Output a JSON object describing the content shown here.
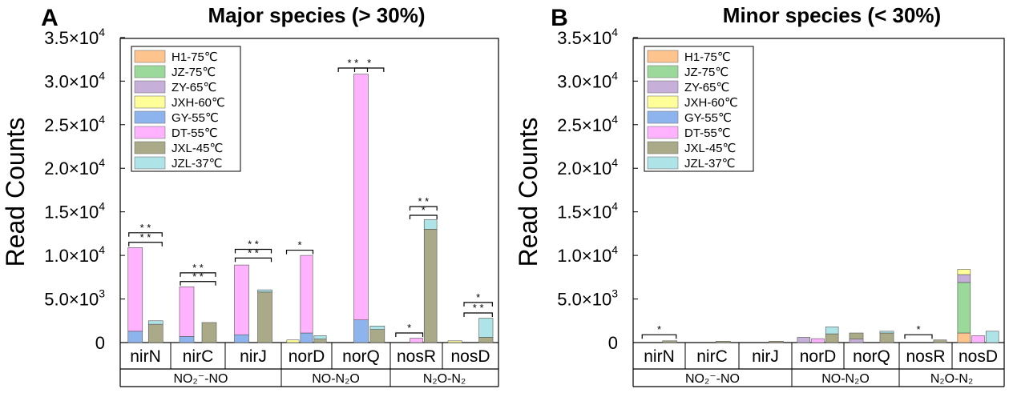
{
  "chart_data": [
    {
      "type": "bar",
      "panel_label": "A",
      "title": "Major species (> 30%)",
      "ylabel": "Read Counts",
      "ylim": [
        0,
        36000
      ],
      "yticks": [
        {
          "label": "0",
          "mant": "0",
          "exp": ""
        },
        {
          "label": "5.0×10³",
          "mant": "5.0×10",
          "exp": "3"
        },
        {
          "label": "1.0×10⁴",
          "mant": "1.0×10",
          "exp": "4"
        },
        {
          "label": "1.5×10⁴",
          "mant": "1.5×10",
          "exp": "4"
        },
        {
          "label": "2.0×10⁴",
          "mant": "2.0×10",
          "exp": "4"
        },
        {
          "label": "2.5×10⁴",
          "mant": "2.5×10",
          "exp": "4"
        },
        {
          "label": "3.0×10⁴",
          "mant": "3.0×10",
          "exp": "4"
        },
        {
          "label": "3.5×10⁴",
          "mant": "3.5×10",
          "exp": "4"
        }
      ],
      "ytick_values": [
        0,
        5000,
        10000,
        15000,
        20000,
        25000,
        30000,
        35000
      ],
      "legend_position": "top-left",
      "series_names": [
        "H1-75℃",
        "JZ-75℃",
        "ZY-65℃",
        "JXH-60℃",
        "GY-55℃",
        "DT-55℃",
        "JXL-45℃",
        "JZL-37℃"
      ],
      "colors": [
        "#FDC48E",
        "#9BD99B",
        "#C6B0DA",
        "#FFFF99",
        "#8EB4EE",
        "#FFB3FF",
        "#AAAA88",
        "#AEE3E8"
      ],
      "genes": [
        {
          "name": "nirN",
          "stacks": [
            {
              "a": [
                0,
                0,
                0,
                0,
                1300,
                9600,
                0,
                0
              ]
            },
            {
              "a": [
                0,
                0,
                0,
                0,
                0,
                0,
                2100,
                400
              ]
            }
          ]
        },
        {
          "name": "nirC",
          "stacks": [
            {
              "a": [
                0,
                0,
                0,
                0,
                700,
                5700,
                0,
                0
              ]
            },
            {
              "a": [
                0,
                0,
                0,
                0,
                0,
                0,
                2300,
                0
              ]
            }
          ]
        },
        {
          "name": "nirJ",
          "stacks": [
            {
              "a": [
                0,
                0,
                0,
                0,
                900,
                8000,
                0,
                0
              ]
            },
            {
              "a": [
                0,
                0,
                0,
                0,
                0,
                0,
                5800,
                250
              ]
            }
          ]
        },
        {
          "name": "norD",
          "stacks": [
            {
              "a": [
                0,
                0,
                0,
                300,
                0,
                0,
                0,
                0
              ]
            },
            {
              "a": [
                0,
                0,
                0,
                0,
                1100,
                8900,
                0,
                0
              ]
            },
            {
              "a": [
                0,
                0,
                0,
                0,
                0,
                0,
                400,
                400
              ]
            }
          ]
        },
        {
          "name": "norQ",
          "stacks": [
            {
              "a": [
                0,
                0,
                0,
                0,
                0,
                0,
                0,
                0
              ]
            },
            {
              "a": [
                0,
                0,
                0,
                0,
                2600,
                28200,
                0,
                0
              ]
            },
            {
              "a": [
                0,
                0,
                0,
                0,
                0,
                0,
                1500,
                400
              ]
            }
          ]
        },
        {
          "name": "nosR",
          "stacks": [
            {
              "a": [
                0,
                0,
                0,
                0,
                0,
                0,
                0,
                0
              ]
            },
            {
              "a": [
                0,
                0,
                0,
                0,
                0,
                500,
                0,
                0
              ]
            },
            {
              "a": [
                0,
                0,
                0,
                0,
                0,
                0,
                13000,
                1100
              ]
            }
          ]
        },
        {
          "name": "nosD",
          "stacks": [
            {
              "a": [
                0,
                0,
                0,
                200,
                0,
                0,
                0,
                0
              ]
            },
            {
              "a": [
                0,
                0,
                0,
                0,
                0,
                0,
                0,
                0
              ]
            },
            {
              "a": [
                0,
                0,
                0,
                0,
                0,
                0,
                600,
                2200
              ]
            }
          ]
        }
      ],
      "groups": [
        {
          "label": "NO₂⁻-NO",
          "genes": [
            0,
            2
          ]
        },
        {
          "label": "NO-N₂O",
          "genes": [
            3,
            4
          ]
        },
        {
          "label": "N₂O-N₂",
          "genes": [
            5,
            6
          ]
        }
      ],
      "significance": [
        {
          "gene": 0,
          "from": 0,
          "to": 1,
          "label": "* *",
          "y": 11500
        },
        {
          "gene": 0,
          "from": 0,
          "to": 1,
          "label": "* *",
          "y": 12600
        },
        {
          "gene": 1,
          "from": 0,
          "to": 1,
          "label": "* *",
          "y": 7000
        },
        {
          "gene": 1,
          "from": 0,
          "to": 1,
          "label": "* *",
          "y": 8000
        },
        {
          "gene": 2,
          "from": 0,
          "to": 1,
          "label": "* *",
          "y": 9700
        },
        {
          "gene": 2,
          "from": 0,
          "to": 1,
          "label": "* *",
          "y": 10700
        },
        {
          "gene": 3,
          "from": 0,
          "to": 1,
          "label": "*",
          "y": 10600
        },
        {
          "gene": 4,
          "from": 0,
          "to": 1,
          "label": "* *",
          "y": 31500
        },
        {
          "gene": 4,
          "from": 1,
          "to": 2,
          "label": "*",
          "y": 31500
        },
        {
          "gene": 5,
          "from": 0,
          "to": 1,
          "label": "*",
          "y": 1100
        },
        {
          "gene": 5,
          "from": 1,
          "to": 2,
          "label": "* *",
          "y": 15600
        },
        {
          "gene": 5,
          "from": 1,
          "to": 2,
          "label": "*",
          "y": 14600
        },
        {
          "gene": 6,
          "from": 1,
          "to": 2,
          "label": "*",
          "y": 4600
        },
        {
          "gene": 6,
          "from": 1,
          "to": 2,
          "label": "* *",
          "y": 3400
        }
      ]
    },
    {
      "type": "bar",
      "panel_label": "B",
      "title": "Minor species (< 30%)",
      "ylabel": "Read Counts",
      "ylim": [
        0,
        36000
      ],
      "yticks": [
        {
          "label": "0",
          "mant": "0",
          "exp": ""
        },
        {
          "label": "5.0×10³",
          "mant": "5.0×10",
          "exp": "3"
        },
        {
          "label": "1.0×10⁴",
          "mant": "1.0×10",
          "exp": "4"
        },
        {
          "label": "1.5×10⁴",
          "mant": "1.5×10",
          "exp": "4"
        },
        {
          "label": "2.0×10⁴",
          "mant": "2.0×10",
          "exp": "4"
        },
        {
          "label": "2.5×10⁴",
          "mant": "2.5×10",
          "exp": "4"
        },
        {
          "label": "3.0×10⁴",
          "mant": "3.0×10",
          "exp": "4"
        },
        {
          "label": "3.5×10⁴",
          "mant": "3.5×10",
          "exp": "4"
        }
      ],
      "ytick_values": [
        0,
        5000,
        10000,
        15000,
        20000,
        25000,
        30000,
        35000
      ],
      "legend_position": "top-left",
      "series_names": [
        "H1-75℃",
        "JZ-75℃",
        "ZY-65℃",
        "JXH-60℃",
        "GY-55℃",
        "DT-55℃",
        "JXL-45℃",
        "JZL-37℃"
      ],
      "colors": [
        "#FDC48E",
        "#9BD99B",
        "#C6B0DA",
        "#FFFF99",
        "#8EB4EE",
        "#FFB3FF",
        "#AAAA88",
        "#AEE3E8"
      ],
      "genes": [
        {
          "name": "nirN",
          "stacks": [
            {
              "a": [
                0,
                0,
                0,
                0,
                0,
                0,
                0,
                0
              ]
            },
            {
              "a": [
                0,
                0,
                0,
                0,
                0,
                0,
                200,
                0
              ]
            }
          ]
        },
        {
          "name": "nirC",
          "stacks": [
            {
              "a": [
                0,
                0,
                0,
                0,
                0,
                0,
                0,
                0
              ]
            },
            {
              "a": [
                0,
                0,
                0,
                0,
                0,
                0,
                150,
                0
              ]
            }
          ]
        },
        {
          "name": "nirJ",
          "stacks": [
            {
              "a": [
                0,
                0,
                0,
                0,
                0,
                0,
                0,
                0
              ]
            },
            {
              "a": [
                0,
                0,
                0,
                0,
                0,
                0,
                150,
                0
              ]
            }
          ]
        },
        {
          "name": "norD",
          "stacks": [
            {
              "a": [
                0,
                0,
                600,
                0,
                0,
                0,
                0,
                0
              ]
            },
            {
              "a": [
                0,
                0,
                0,
                0,
                0,
                450,
                0,
                0
              ]
            },
            {
              "a": [
                0,
                0,
                0,
                0,
                0,
                0,
                1000,
                800
              ]
            }
          ]
        },
        {
          "name": "norQ",
          "stacks": [
            {
              "a": [
                0,
                0,
                400,
                0,
                0,
                0,
                700,
                0
              ]
            },
            {
              "a": [
                0,
                0,
                0,
                0,
                0,
                0,
                0,
                0
              ]
            },
            {
              "a": [
                0,
                0,
                0,
                0,
                0,
                0,
                1100,
                200
              ]
            }
          ]
        },
        {
          "name": "nosR",
          "stacks": [
            {
              "a": [
                0,
                0,
                0,
                0,
                0,
                0,
                0,
                0
              ]
            },
            {
              "a": [
                0,
                0,
                0,
                0,
                0,
                0,
                0,
                0
              ]
            },
            {
              "a": [
                0,
                0,
                0,
                0,
                0,
                0,
                300,
                0
              ]
            }
          ]
        },
        {
          "name": "nosD",
          "stacks": [
            {
              "a": [
                1100,
                5800,
                900,
                600,
                0,
                0,
                0,
                0
              ]
            },
            {
              "a": [
                0,
                0,
                0,
                0,
                0,
                800,
                0,
                0
              ]
            },
            {
              "a": [
                0,
                0,
                0,
                0,
                0,
                0,
                0,
                1300
              ]
            }
          ]
        }
      ],
      "groups": [
        {
          "label": "NO₂⁻-NO",
          "genes": [
            0,
            2
          ]
        },
        {
          "label": "NO-N₂O",
          "genes": [
            3,
            4
          ]
        },
        {
          "label": "N₂O-N₂",
          "genes": [
            5,
            6
          ]
        }
      ],
      "significance": [
        {
          "gene": 0,
          "from": 0,
          "to": 1,
          "label": "*",
          "y": 900
        },
        {
          "gene": 5,
          "from": 0,
          "to": 1,
          "label": "*",
          "y": 900
        }
      ]
    }
  ]
}
